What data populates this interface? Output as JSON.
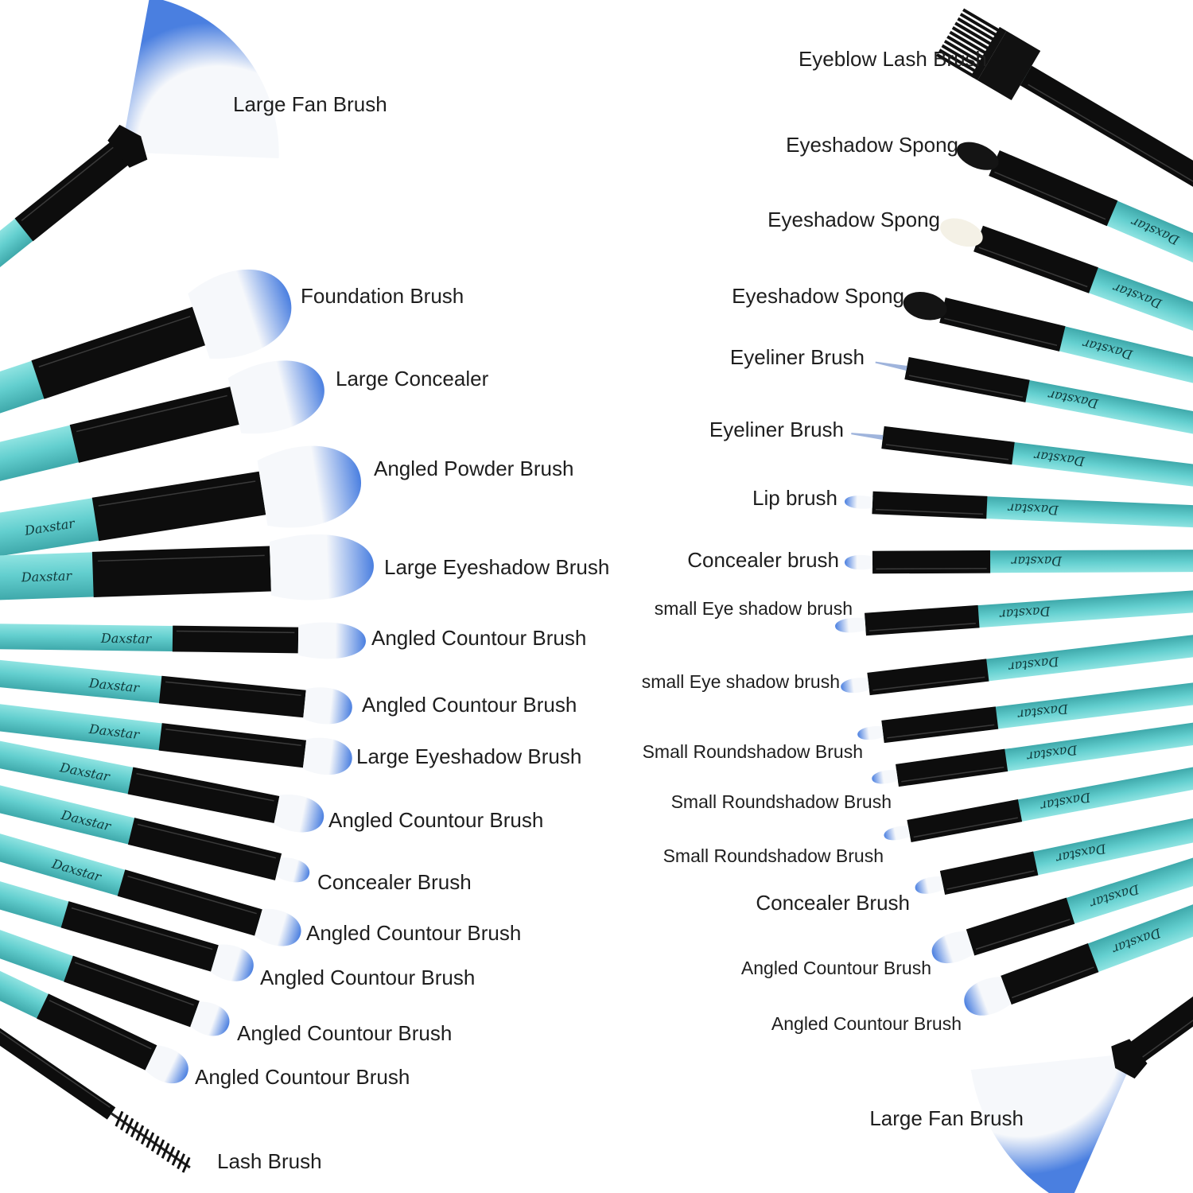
{
  "colors": {
    "handle": "#63cfcf",
    "handle_dark": "#3fa9ab",
    "ferrule": "#0d0d0d",
    "bristle_white": "#f6f8fb",
    "bristle_tip": "#4a7fe0",
    "label": "#1e1e1e"
  },
  "handle_brand": "Daxstar",
  "brushes": {
    "left": [
      {
        "label": "Large Fan Brush",
        "tip": "fan"
      },
      {
        "label": "Foundation Brush",
        "tip": "round"
      },
      {
        "label": "Large Concealer",
        "tip": "round"
      },
      {
        "label": "Angled Powder Brush",
        "tip": "angled"
      },
      {
        "label": "Large Eyeshadow Brush",
        "tip": "flat"
      },
      {
        "label": "Angled Countour Brush",
        "tip": "flat"
      },
      {
        "label": "Angled Countour Brush",
        "tip": "flat"
      },
      {
        "label": "Large Eyeshadow Brush",
        "tip": "flat"
      },
      {
        "label": "Angled Countour Brush",
        "tip": "flat"
      },
      {
        "label": "Concealer Brush",
        "tip": "flat"
      },
      {
        "label": "Angled Countour Brush",
        "tip": "flat"
      },
      {
        "label": "Angled Countour Brush",
        "tip": "flat"
      },
      {
        "label": "Angled Countour Brush",
        "tip": "flat"
      },
      {
        "label": "Angled Countour Brush",
        "tip": "flat"
      },
      {
        "label": "Lash Brush",
        "tip": "spoolie"
      }
    ],
    "right": [
      {
        "label": "Eyeblow Lash Brush",
        "tip": "comb"
      },
      {
        "label": "Eyeshadow Spong",
        "tip": "sponge-black"
      },
      {
        "label": "Eyeshadow Spong",
        "tip": "sponge-white"
      },
      {
        "label": "Eyeshadow Spong",
        "tip": "sponge-black"
      },
      {
        "label": "Eyeliner Brush",
        "tip": "liner"
      },
      {
        "label": "Eyeliner Brush",
        "tip": "liner"
      },
      {
        "label": "Lip brush",
        "tip": "small"
      },
      {
        "label": "Concealer brush",
        "tip": "small"
      },
      {
        "label": "small Eye shadow brush",
        "tip": "small"
      },
      {
        "label": "small Eye shadow brush",
        "tip": "small"
      },
      {
        "label": "Small Roundshadow Brush",
        "tip": "small"
      },
      {
        "label": "Small Roundshadow Brush",
        "tip": "small"
      },
      {
        "label": "Small Roundshadow Brush",
        "tip": "small"
      },
      {
        "label": "Concealer Brush",
        "tip": "small"
      },
      {
        "label": "Angled Countour Brush",
        "tip": "flat"
      },
      {
        "label": "Angled Countour Brush",
        "tip": "flat"
      },
      {
        "label": "Large Fan Brush",
        "tip": "fan"
      }
    ]
  }
}
